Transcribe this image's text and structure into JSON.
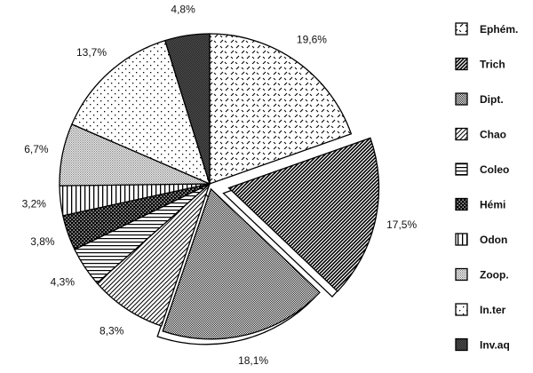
{
  "chart_data": {
    "type": "pie",
    "title": "",
    "start_angle": "12 o'clock, clockwise",
    "legend_position": "right",
    "categories": [
      "Ephém.",
      "Trich",
      "Dipt.",
      "Chao",
      "Coleo",
      "Hémi",
      "Odon",
      "Zoop.",
      "In.ter",
      "Inv.aq"
    ],
    "values": [
      19.6,
      17.5,
      18.1,
      8.3,
      4.3,
      3.8,
      3.2,
      6.7,
      13.7,
      4.8
    ],
    "labels": [
      "19,6%",
      "17,5%",
      "18,1%",
      "8,3%",
      "4,3%",
      "3,8%",
      "3,2%",
      "6,7%",
      "13,7%",
      "4,8%"
    ],
    "patterns": [
      "dashed-diagonal",
      "dense-diagonal-dark",
      "dark-dither",
      "diagonal-lines",
      "horizontal-lines",
      "checker-dots",
      "vertical-lines",
      "light-dither",
      "sparse-dots",
      "dark-grey-dither"
    ],
    "exploded": [
      "Trich",
      "Dipt."
    ]
  }
}
